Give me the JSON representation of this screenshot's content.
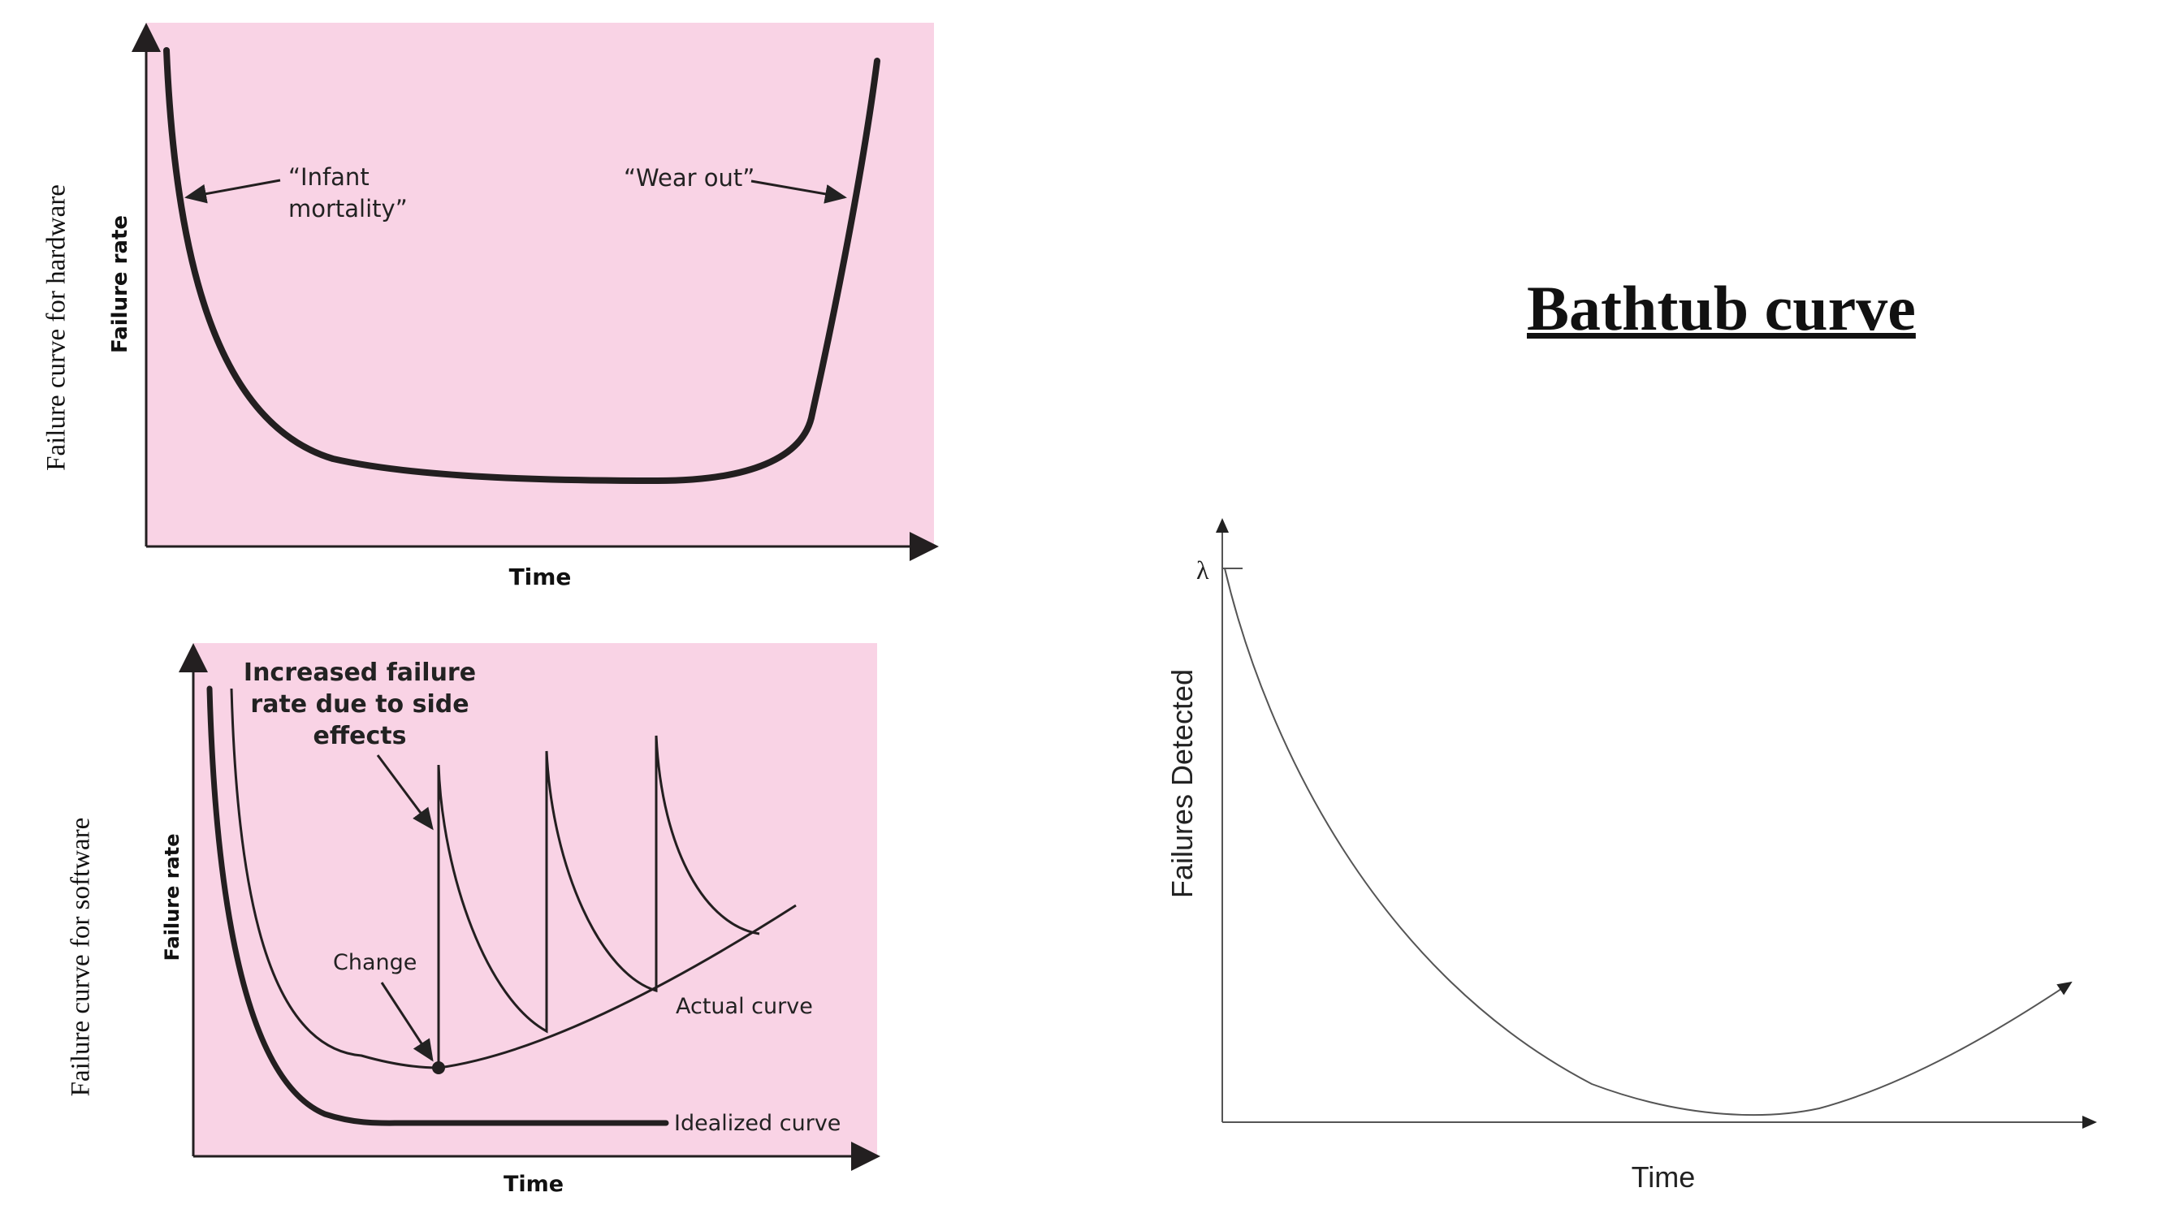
{
  "page": {
    "title": "Bathtub curve",
    "hardware_side_label": "Failure curve for hardware",
    "software_side_label": "Failure curve for software"
  },
  "hardware_chart": {
    "background": "#f9d3e5",
    "ylabel": "Failure rate",
    "xlabel": "Time",
    "annotation_infant_line1": "“Infant",
    "annotation_infant_line2": "mortality”",
    "annotation_wear": "“Wear out”"
  },
  "software_chart": {
    "background": "#f9d3e5",
    "ylabel": "Failure rate",
    "xlabel": "Time",
    "annotation_increased_line1": "Increased failure",
    "annotation_increased_line2": "rate due to side",
    "annotation_increased_line3": "effects",
    "annotation_change": "Change",
    "label_actual": "Actual curve",
    "label_idealized": "Idealized curve"
  },
  "bathtub_chart": {
    "ylabel": "Failures Detected",
    "xlabel": "Time",
    "y_tick": "λ"
  },
  "colors": {
    "pink_panel": "#f9d3e5",
    "curve": "#231f20"
  }
}
